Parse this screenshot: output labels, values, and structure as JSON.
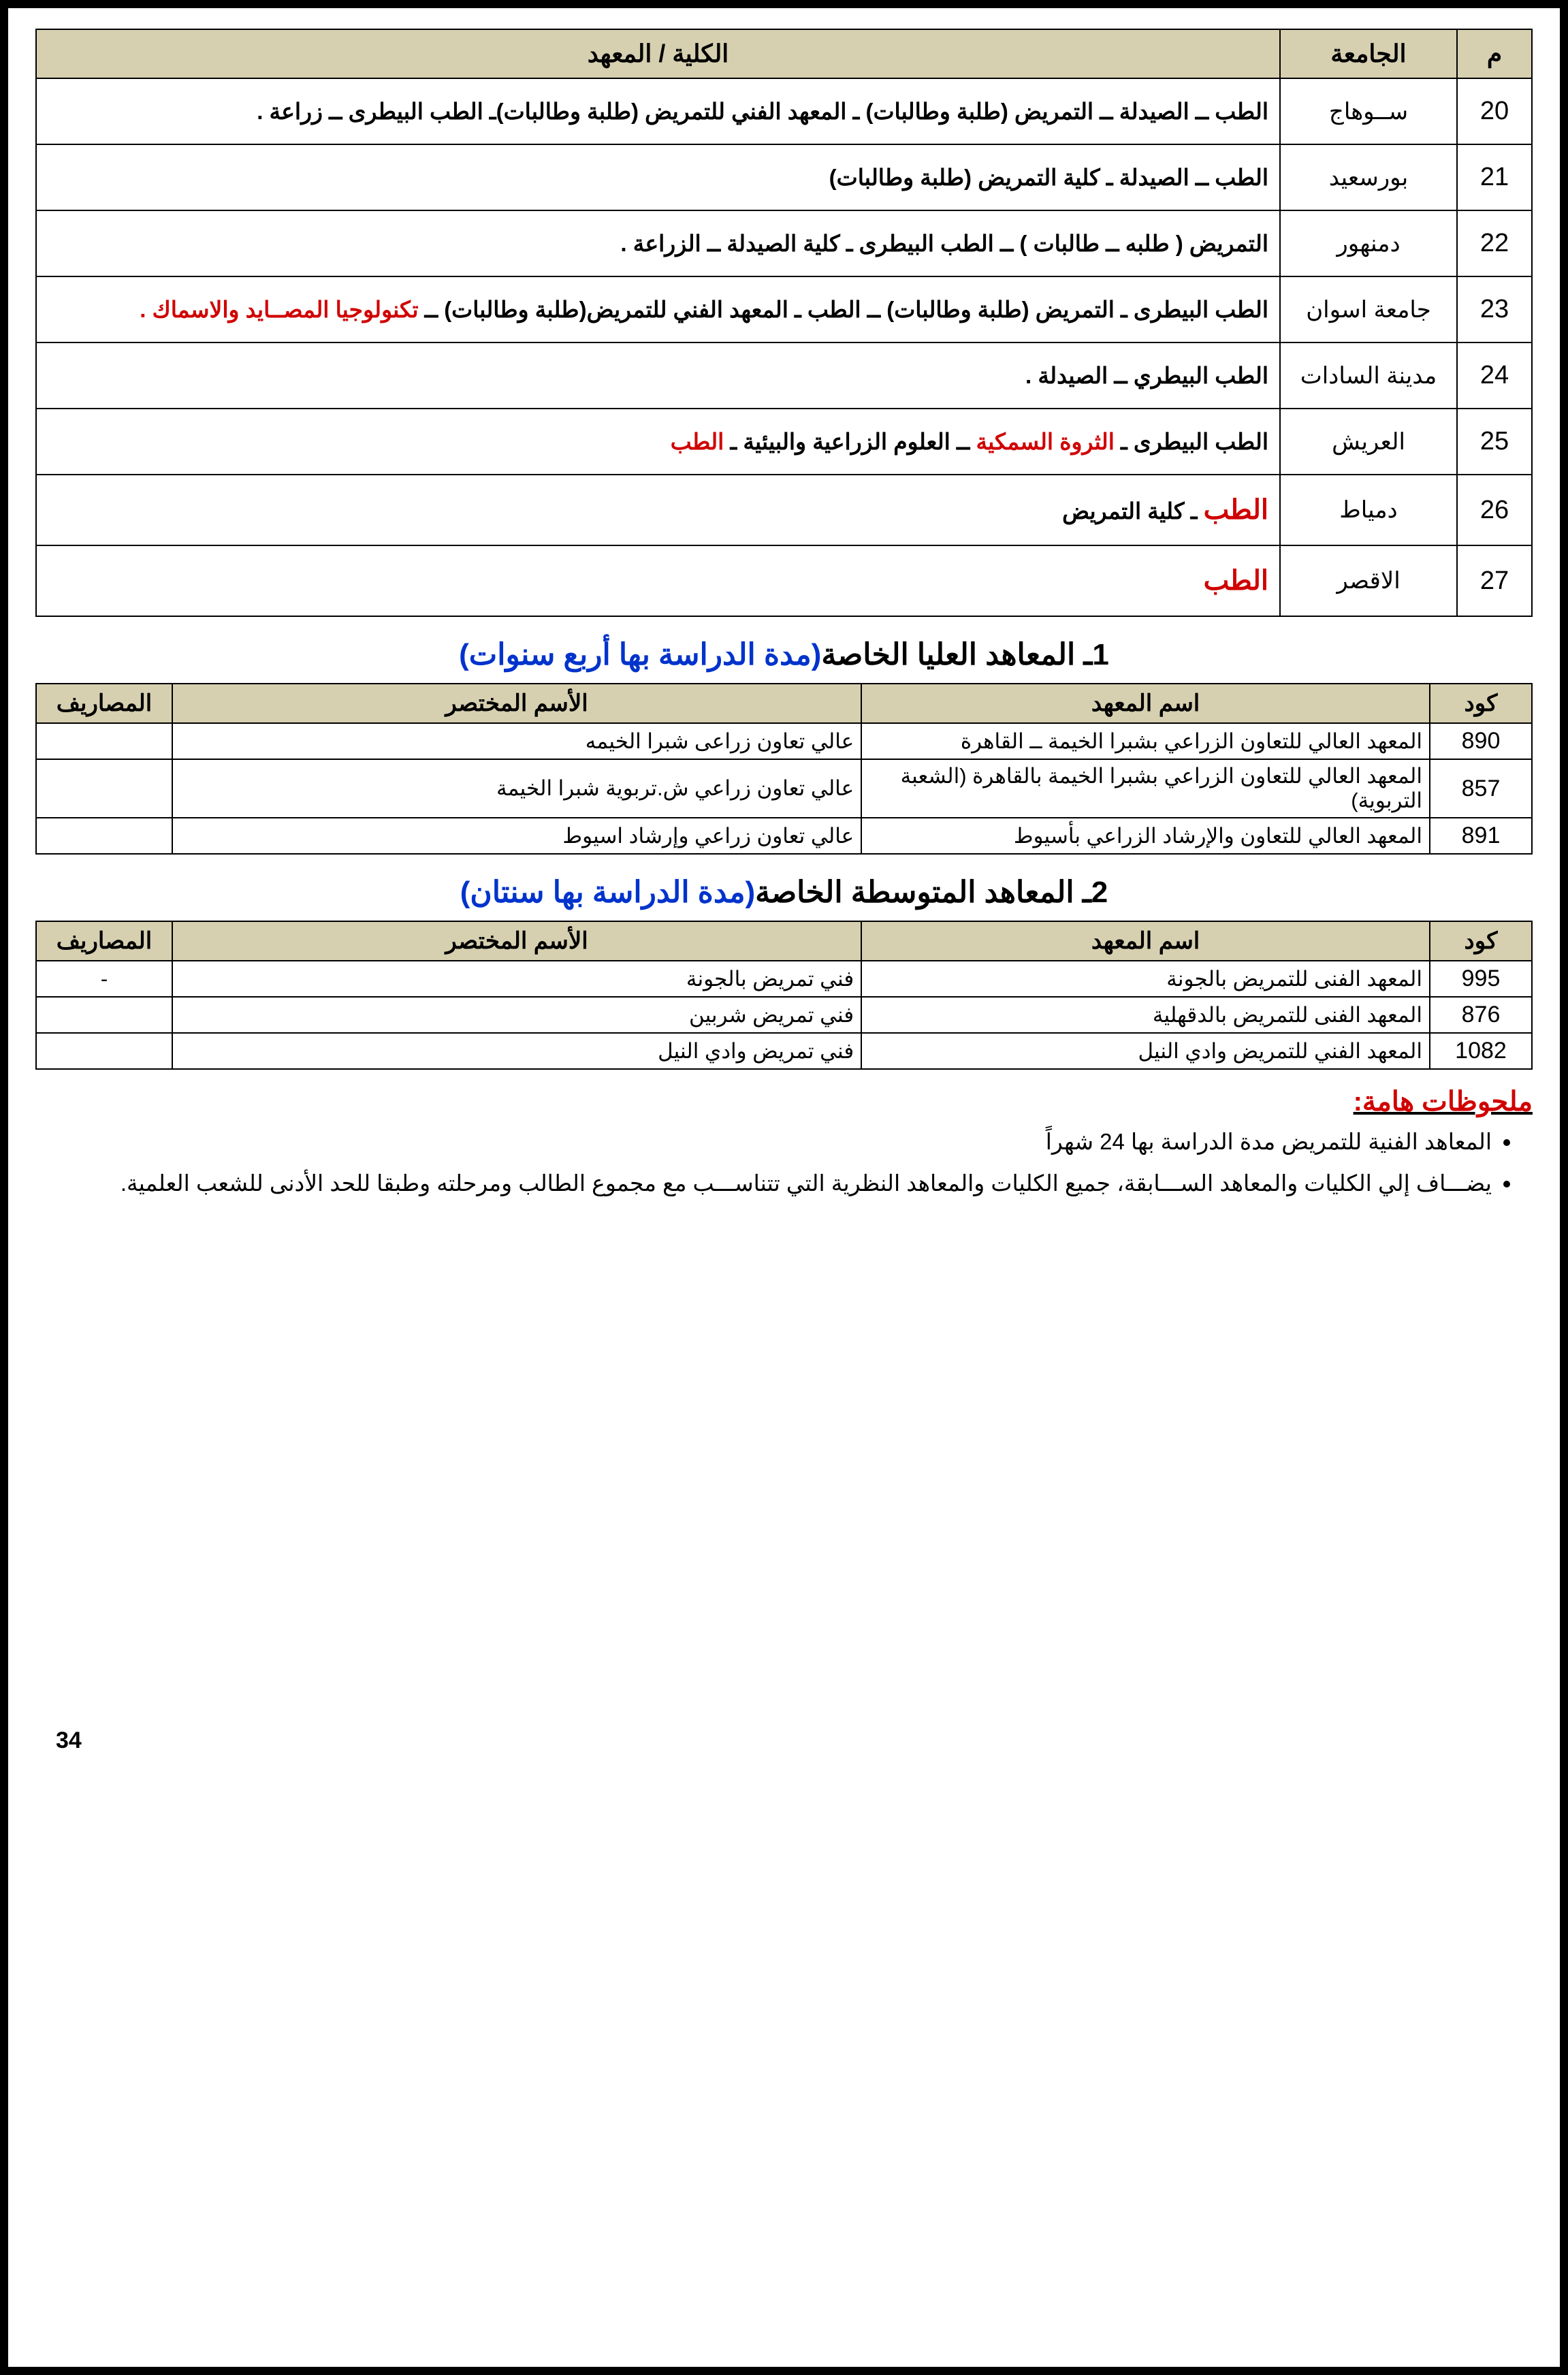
{
  "table1": {
    "headers": {
      "idx": "م",
      "uni": "الجامعة",
      "college": "الكلية / المعهد"
    },
    "rows": [
      {
        "idx": "20",
        "uni": "ســوهاج",
        "college_parts": [
          {
            "t": "الطب ــ الصيدلة ــ التمريض (طلبة وطالبات) ـ المعهد الفني للتمريض "
          },
          {
            "t": "(طلبة وطالبات)",
            "b": true
          },
          {
            "t": "ـ الطب البيطرى ــ زراعة ."
          }
        ]
      },
      {
        "idx": "21",
        "uni": "بورسعيد",
        "college_parts": [
          {
            "t": "الطب ــ الصيدلة ـ كلية التمريض (طلبة وطالبات)"
          }
        ]
      },
      {
        "idx": "22",
        "uni": "دمنهور",
        "college_parts": [
          {
            "t": "التمريض ( طلبه ــ طالبات ) ــ الطب البيطرى ـ كلية الصيدلة ــ الزراعة ."
          }
        ]
      },
      {
        "idx": "23",
        "uni": "جامعة اسوان",
        "college_parts": [
          {
            "t": "الطب البيطرى ـ التمريض (طلبة وطالبات) ــ الطب ـ المعهد الفني للتمريض(طلبة وطالبات) ــ "
          },
          {
            "t": "تكنولوجيا المصــايد والاسماك .",
            "red": true
          }
        ]
      },
      {
        "idx": "24",
        "uni": "مدينة السادات",
        "college_parts": [
          {
            "t": "الطب البيطري ــ الصيدلة ."
          }
        ]
      },
      {
        "idx": "25",
        "uni": "العريش",
        "college_parts": [
          {
            "t": "الطب البيطرى  ـ  "
          },
          {
            "t": "الثروة السمكية",
            "red": true
          },
          {
            "t": " ــ العلوم الزراعية والبيئية ـ "
          },
          {
            "t": "الطب",
            "red": true
          }
        ]
      },
      {
        "idx": "26",
        "uni": "دمياط",
        "college_parts": [
          {
            "t": "الطب",
            "red": true,
            "big": true
          },
          {
            "t": " ـ كلية التمريض"
          }
        ]
      },
      {
        "idx": "27",
        "uni": "الاقصر",
        "college_parts": [
          {
            "t": "الطب",
            "red": true,
            "big": true
          }
        ]
      }
    ]
  },
  "section1_title_prefix": "1ـ المعاهد العليا الخاصة",
  "section1_title_blue": "(مدة الدراسة بها أربع سنوات)",
  "table2": {
    "headers": {
      "code": "كود",
      "name": "اسم المعهد",
      "short": "الأسم المختصر",
      "fees": "المصاريف"
    },
    "rows": [
      {
        "code": "890",
        "name": "المعهد العالي للتعاون الزراعي بشبرا الخيمة ــ القاهرة",
        "short": "عالي تعاون زراعى شبرا الخيمه",
        "fees": ""
      },
      {
        "code": "857",
        "name": "المعهد العالي للتعاون الزراعي بشبرا الخيمة بالقاهرة (الشعبة التربوية)",
        "short": "عالي تعاون زراعي ش.تربوية شبرا الخيمة",
        "fees": ""
      },
      {
        "code": "891",
        "name": "المعهد العالي للتعاون والإرشاد الزراعي بأسيوط",
        "short": "عالي تعاون زراعي وإرشاد اسيوط",
        "fees": ""
      }
    ]
  },
  "section2_title_prefix": "2ـ المعاهد المتوسطة الخاصة",
  "section2_title_blue": "(مدة الدراسة بها سنتان)",
  "table3": {
    "headers": {
      "code": "كود",
      "name": "اسم المعهد",
      "short": "الأسم المختصر",
      "fees": "المصاريف"
    },
    "rows": [
      {
        "code": "995",
        "name": "المعهد الفنى للتمريض بالجونة",
        "short": "فني تمريض بالجونة",
        "fees": "-"
      },
      {
        "code": "876",
        "name": "المعهد الفنى للتمريض بالدقهلية",
        "short": "فني تمريض شربين",
        "fees": ""
      },
      {
        "code": "1082",
        "name": "المعهد الفني للتمريض وادي النيل",
        "short": "فني تمريض وادي النيل",
        "fees": ""
      }
    ]
  },
  "notes_heading": "ملحوظات هامة:",
  "notes": [
    "المعاهد الفنية للتمريض مدة الدراسة بها 24 شهراً",
    "يضـــاف إلي الكليات والمعاهد الســـابقة، جميع الكليات والمعاهد النظرية التي تتناســـب مع مجموع الطالب ومرحلته وطبقا للحد الأدنى للشعب العلمية."
  ],
  "page_number": "34"
}
